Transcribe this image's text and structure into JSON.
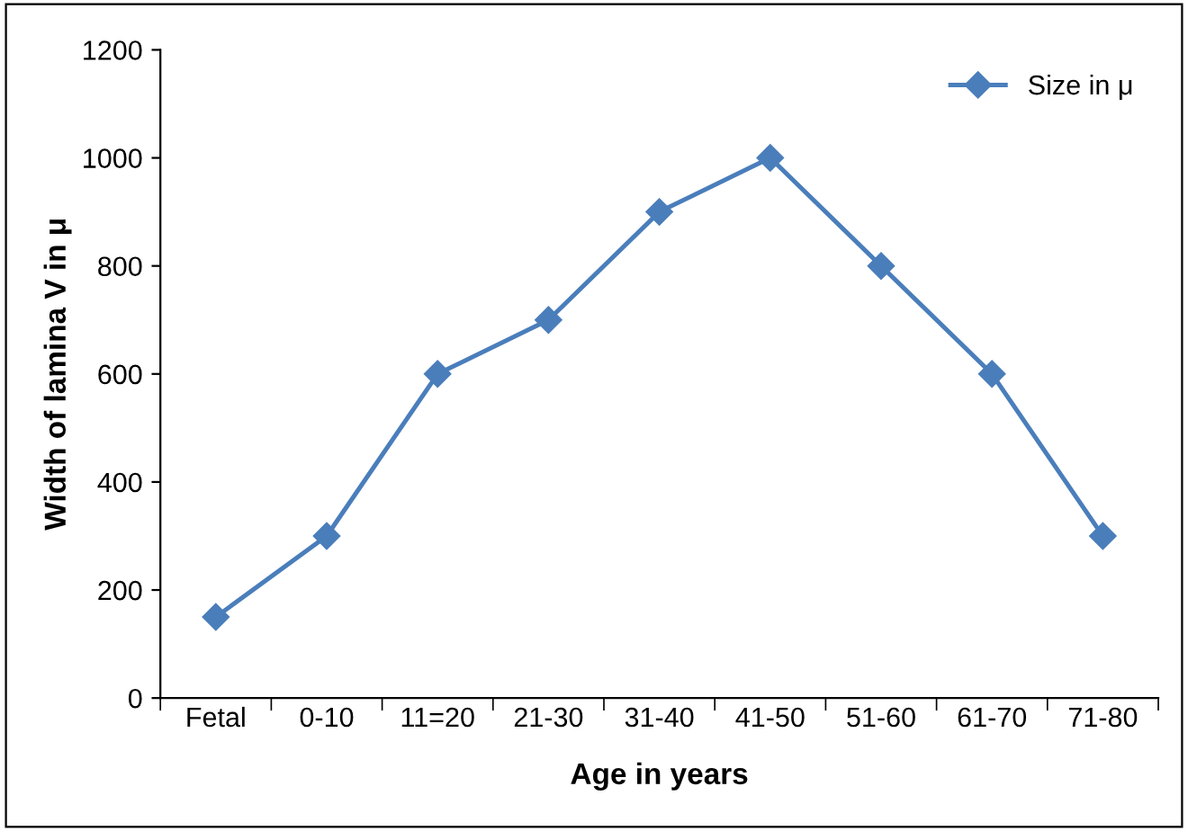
{
  "chart_data": {
    "type": "line",
    "xlabel": "Age in years",
    "ylabel": "Width of lamina V in μ",
    "categories": [
      "Fetal",
      "0-10",
      "11=20",
      "21-30",
      "31-40",
      "41-50",
      "51-60",
      "61-70",
      "71-80"
    ],
    "series": [
      {
        "name": "Size in μ",
        "color": "#4a7ebb",
        "values": [
          150,
          300,
          600,
          700,
          900,
          1000,
          800,
          600,
          300
        ]
      }
    ],
    "ylim": [
      0,
      1200
    ],
    "yticks": [
      0,
      200,
      400,
      600,
      800,
      1000,
      1200
    ],
    "marker": "diamond",
    "line_style": "solid",
    "legend": "top right",
    "grid": false
  }
}
